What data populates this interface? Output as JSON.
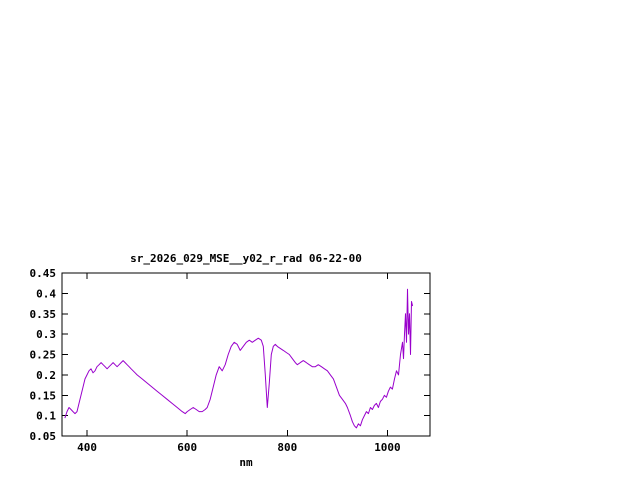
{
  "chart_data": {
    "type": "line",
    "title": "sr_2026_029_MSE__y02_r_rad 06-22-00",
    "xlabel": "nm",
    "ylabel": "",
    "xlim": [
      350,
      1085
    ],
    "ylim": [
      0.05,
      0.45
    ],
    "xticks": [
      400,
      600,
      800,
      1000
    ],
    "yticks": [
      0.05,
      0.1,
      0.15,
      0.2,
      0.25,
      0.3,
      0.35,
      0.4,
      0.45
    ],
    "ytick_labels": [
      "0.05",
      "0.1",
      "0.15",
      "0.2",
      "0.25",
      "0.3",
      "0.35",
      "0.4",
      "0.45"
    ],
    "xtick_labels": [
      "400",
      "600",
      "800",
      "1000"
    ],
    "grid": false,
    "legend": "none",
    "line_color": "#9900cc",
    "border_color": "#000000",
    "background_color": "#ffffff",
    "series": [
      {
        "name": "sr_2026_029_MSE__y02_r_rad",
        "x": [
          356,
          360,
          364,
          368,
          372,
          376,
          380,
          384,
          388,
          392,
          396,
          400,
          404,
          408,
          412,
          416,
          420,
          424,
          428,
          432,
          436,
          440,
          444,
          448,
          452,
          456,
          460,
          464,
          468,
          472,
          476,
          480,
          484,
          488,
          492,
          496,
          500,
          510,
          520,
          530,
          540,
          550,
          560,
          570,
          580,
          590,
          596,
          600,
          606,
          612,
          618,
          624,
          630,
          636,
          640,
          646,
          652,
          658,
          664,
          670,
          676,
          682,
          688,
          694,
          700,
          706,
          712,
          718,
          724,
          730,
          736,
          742,
          748,
          752,
          756,
          760,
          764,
          768,
          772,
          776,
          780,
          786,
          792,
          798,
          804,
          810,
          816,
          820,
          826,
          832,
          838,
          844,
          850,
          856,
          862,
          868,
          874,
          880,
          886,
          892,
          898,
          904,
          910,
          916,
          920,
          926,
          930,
          934,
          938,
          942,
          946,
          950,
          954,
          958,
          962,
          966,
          970,
          974,
          978,
          982,
          986,
          990,
          994,
          998,
          1002,
          1006,
          1010,
          1014,
          1018,
          1022,
          1026,
          1030,
          1032,
          1034,
          1036,
          1038,
          1040,
          1042,
          1044,
          1046,
          1048,
          1050
        ],
        "y": [
          0.095,
          0.11,
          0.12,
          0.115,
          0.11,
          0.105,
          0.11,
          0.13,
          0.15,
          0.17,
          0.19,
          0.2,
          0.21,
          0.215,
          0.205,
          0.21,
          0.22,
          0.225,
          0.23,
          0.225,
          0.22,
          0.215,
          0.22,
          0.225,
          0.23,
          0.225,
          0.22,
          0.225,
          0.23,
          0.235,
          0.23,
          0.225,
          0.22,
          0.215,
          0.21,
          0.205,
          0.2,
          0.19,
          0.18,
          0.17,
          0.16,
          0.15,
          0.14,
          0.13,
          0.12,
          0.11,
          0.105,
          0.11,
          0.115,
          0.12,
          0.115,
          0.11,
          0.11,
          0.115,
          0.12,
          0.14,
          0.17,
          0.2,
          0.22,
          0.21,
          0.225,
          0.25,
          0.27,
          0.28,
          0.275,
          0.26,
          0.27,
          0.28,
          0.285,
          0.28,
          0.285,
          0.29,
          0.285,
          0.27,
          0.2,
          0.12,
          0.18,
          0.25,
          0.27,
          0.275,
          0.27,
          0.265,
          0.26,
          0.255,
          0.25,
          0.24,
          0.23,
          0.225,
          0.23,
          0.235,
          0.23,
          0.225,
          0.22,
          0.22,
          0.225,
          0.22,
          0.215,
          0.21,
          0.2,
          0.19,
          0.17,
          0.15,
          0.14,
          0.13,
          0.12,
          0.1,
          0.085,
          0.075,
          0.07,
          0.08,
          0.075,
          0.09,
          0.1,
          0.11,
          0.105,
          0.12,
          0.115,
          0.125,
          0.13,
          0.12,
          0.135,
          0.14,
          0.15,
          0.145,
          0.16,
          0.17,
          0.165,
          0.19,
          0.21,
          0.2,
          0.25,
          0.28,
          0.24,
          0.3,
          0.35,
          0.28,
          0.41,
          0.3,
          0.35,
          0.25,
          0.38,
          0.37
        ]
      }
    ]
  }
}
